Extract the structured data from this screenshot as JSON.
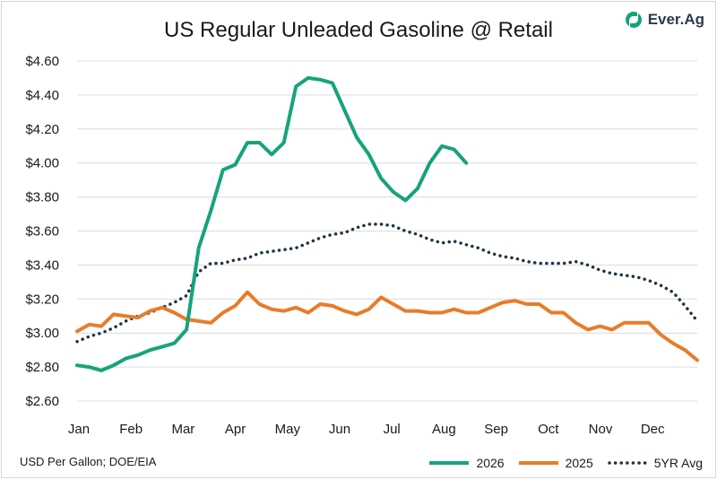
{
  "title": "US Regular Unleaded Gasoline @ Retail",
  "brand": {
    "name": "Ever.Ag",
    "color": "#14a37a"
  },
  "source_note": "USD Per Gallon; DOE/EIA",
  "chart_data": {
    "type": "line",
    "ylim": [
      2.6,
      4.6
    ],
    "y_ticks": [
      2.6,
      2.8,
      3.0,
      3.2,
      3.4,
      3.6,
      3.8,
      4.0,
      4.2,
      4.4,
      4.6
    ],
    "y_tick_labels": [
      "$2.60",
      "$2.80",
      "$3.00",
      "$3.20",
      "$3.40",
      "$3.60",
      "$3.80",
      "$4.00",
      "$4.20",
      "$4.40",
      "$4.60"
    ],
    "x_ticks": [
      "Jan",
      "Feb",
      "Mar",
      "Apr",
      "May",
      "Jun",
      "Jul",
      "Aug",
      "Sep",
      "Oct",
      "Nov",
      "Dec"
    ],
    "x_unit": "week_of_year",
    "xlim": [
      1,
      52
    ],
    "grid": "horizontal",
    "legend": "bottom-right",
    "series": [
      {
        "name": "2026",
        "color": "#16a37b",
        "style": "solid",
        "points": [
          [
            1,
            2.81
          ],
          [
            2,
            2.8
          ],
          [
            3,
            2.78
          ],
          [
            4,
            2.81
          ],
          [
            5,
            2.85
          ],
          [
            6,
            2.87
          ],
          [
            7,
            2.9
          ],
          [
            8,
            2.92
          ],
          [
            9,
            2.94
          ],
          [
            10,
            3.02
          ],
          [
            11,
            3.5
          ],
          [
            12,
            3.72
          ],
          [
            13,
            3.96
          ],
          [
            14,
            3.99
          ],
          [
            15,
            4.12
          ],
          [
            16,
            4.12
          ],
          [
            17,
            4.05
          ],
          [
            18,
            4.12
          ],
          [
            19,
            4.45
          ],
          [
            20,
            4.5
          ],
          [
            21,
            4.49
          ],
          [
            22,
            4.47
          ],
          [
            23,
            4.31
          ],
          [
            24,
            4.15
          ],
          [
            25,
            4.05
          ],
          [
            26,
            3.91
          ],
          [
            27,
            3.83
          ],
          [
            28,
            3.78
          ],
          [
            29,
            3.85
          ],
          [
            30,
            4.0
          ],
          [
            31,
            4.1
          ],
          [
            32,
            4.08
          ],
          [
            33,
            4.0
          ]
        ]
      },
      {
        "name": "2025",
        "color": "#e87c2a",
        "style": "solid",
        "points": [
          [
            1,
            3.01
          ],
          [
            2,
            3.05
          ],
          [
            3,
            3.04
          ],
          [
            4,
            3.11
          ],
          [
            5,
            3.1
          ],
          [
            6,
            3.09
          ],
          [
            7,
            3.13
          ],
          [
            8,
            3.15
          ],
          [
            9,
            3.12
          ],
          [
            10,
            3.08
          ],
          [
            11,
            3.07
          ],
          [
            12,
            3.06
          ],
          [
            13,
            3.12
          ],
          [
            14,
            3.16
          ],
          [
            15,
            3.24
          ],
          [
            16,
            3.17
          ],
          [
            17,
            3.14
          ],
          [
            18,
            3.13
          ],
          [
            19,
            3.15
          ],
          [
            20,
            3.12
          ],
          [
            21,
            3.17
          ],
          [
            22,
            3.16
          ],
          [
            23,
            3.13
          ],
          [
            24,
            3.11
          ],
          [
            25,
            3.14
          ],
          [
            26,
            3.21
          ],
          [
            27,
            3.17
          ],
          [
            28,
            3.13
          ],
          [
            29,
            3.13
          ],
          [
            30,
            3.12
          ],
          [
            31,
            3.12
          ],
          [
            32,
            3.14
          ],
          [
            33,
            3.12
          ],
          [
            34,
            3.12
          ],
          [
            35,
            3.15
          ],
          [
            36,
            3.18
          ],
          [
            37,
            3.19
          ],
          [
            38,
            3.17
          ],
          [
            39,
            3.17
          ],
          [
            40,
            3.12
          ],
          [
            41,
            3.12
          ],
          [
            42,
            3.06
          ],
          [
            43,
            3.02
          ],
          [
            44,
            3.04
          ],
          [
            45,
            3.02
          ],
          [
            46,
            3.06
          ],
          [
            47,
            3.06
          ],
          [
            48,
            3.06
          ],
          [
            49,
            2.99
          ],
          [
            50,
            2.94
          ],
          [
            51,
            2.9
          ],
          [
            52,
            2.84
          ]
        ]
      },
      {
        "name": "5YR Avg",
        "color": "#1e3446",
        "style": "dotted",
        "points": [
          [
            1,
            2.95
          ],
          [
            2,
            2.98
          ],
          [
            3,
            3.0
          ],
          [
            4,
            3.03
          ],
          [
            5,
            3.07
          ],
          [
            6,
            3.1
          ],
          [
            7,
            3.12
          ],
          [
            8,
            3.15
          ],
          [
            9,
            3.18
          ],
          [
            10,
            3.22
          ],
          [
            11,
            3.36
          ],
          [
            12,
            3.41
          ],
          [
            13,
            3.41
          ],
          [
            14,
            3.43
          ],
          [
            15,
            3.44
          ],
          [
            16,
            3.47
          ],
          [
            17,
            3.48
          ],
          [
            18,
            3.49
          ],
          [
            19,
            3.5
          ],
          [
            20,
            3.53
          ],
          [
            21,
            3.56
          ],
          [
            22,
            3.58
          ],
          [
            23,
            3.59
          ],
          [
            24,
            3.62
          ],
          [
            25,
            3.64
          ],
          [
            26,
            3.64
          ],
          [
            27,
            3.63
          ],
          [
            28,
            3.6
          ],
          [
            29,
            3.58
          ],
          [
            30,
            3.55
          ],
          [
            31,
            3.53
          ],
          [
            32,
            3.54
          ],
          [
            33,
            3.52
          ],
          [
            34,
            3.5
          ],
          [
            35,
            3.47
          ],
          [
            36,
            3.45
          ],
          [
            37,
            3.44
          ],
          [
            38,
            3.42
          ],
          [
            39,
            3.41
          ],
          [
            40,
            3.41
          ],
          [
            41,
            3.41
          ],
          [
            42,
            3.42
          ],
          [
            43,
            3.4
          ],
          [
            44,
            3.37
          ],
          [
            45,
            3.35
          ],
          [
            46,
            3.34
          ],
          [
            47,
            3.33
          ],
          [
            48,
            3.31
          ],
          [
            49,
            3.28
          ],
          [
            50,
            3.24
          ],
          [
            51,
            3.16
          ],
          [
            52,
            3.07
          ]
        ]
      }
    ]
  }
}
